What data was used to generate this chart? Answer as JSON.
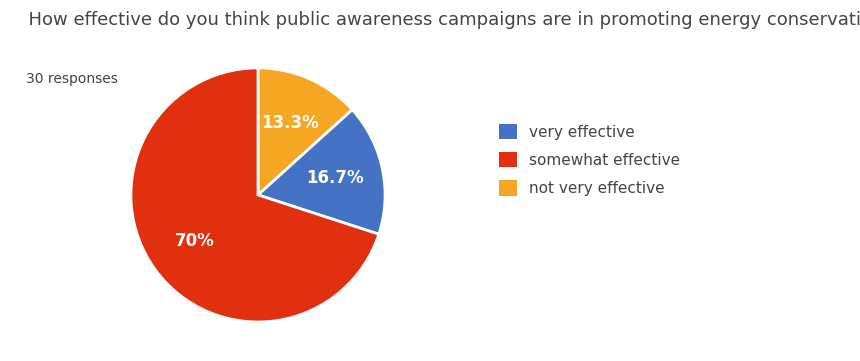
{
  "title": "  How effective do you think public awareness campaigns are in promoting energy conservation?",
  "subtitle": "30 responses",
  "labels": [
    "very effective",
    "somewhat effective",
    "not very effective"
  ],
  "values": [
    16.7,
    70.0,
    13.3
  ],
  "colors": [
    "#4472C4",
    "#E03010",
    "#F5A623"
  ],
  "pie_order_values": [
    13.3,
    16.7,
    70.0
  ],
  "pie_order_colors": [
    "#F5A623",
    "#4472C4",
    "#E03010"
  ],
  "pie_order_pct_labels": [
    "13.3%",
    "16.7%",
    "70%"
  ],
  "title_fontsize": 13,
  "subtitle_fontsize": 10,
  "legend_fontsize": 11,
  "pct_fontsize": 12,
  "background_color": "#ffffff",
  "text_color": "#444444",
  "startangle": 90
}
